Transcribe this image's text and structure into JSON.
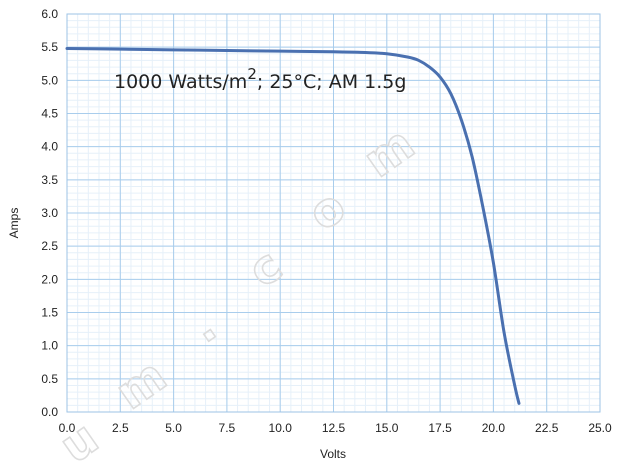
{
  "chart_data": {
    "type": "line",
    "xlabel": "Volts",
    "ylabel": "Amps",
    "xlim": [
      0,
      25
    ],
    "ylim": [
      0,
      6
    ],
    "x_ticks": [
      "0.0",
      "2.5",
      "5.0",
      "7.5",
      "10.0",
      "12.5",
      "15.0",
      "17.5",
      "20.0",
      "22.5",
      "25.0"
    ],
    "y_ticks": [
      "0.0",
      "0.5",
      "1.0",
      "1.5",
      "2.0",
      "2.5",
      "3.0",
      "3.5",
      "4.0",
      "4.5",
      "5.0",
      "5.5",
      "6.0"
    ],
    "grid": true,
    "annotation": {
      "prefix": "1000 Watts/m",
      "superscript": "2",
      "suffix": "; 25°C; AM 1.5g"
    },
    "watermark": "u m . c o m",
    "series": [
      {
        "color": "#4a70b0",
        "x": [
          0,
          2.5,
          5,
          7.5,
          10,
          12.5,
          14,
          15,
          16,
          16.5,
          17,
          17.5,
          18,
          18.5,
          19,
          19.5,
          20,
          20.5,
          21,
          21.2
        ],
        "y": [
          5.48,
          5.47,
          5.46,
          5.45,
          5.44,
          5.43,
          5.42,
          5.4,
          5.35,
          5.3,
          5.2,
          5.05,
          4.8,
          4.4,
          3.85,
          3.1,
          2.25,
          1.2,
          0.4,
          0.13
        ]
      }
    ]
  }
}
